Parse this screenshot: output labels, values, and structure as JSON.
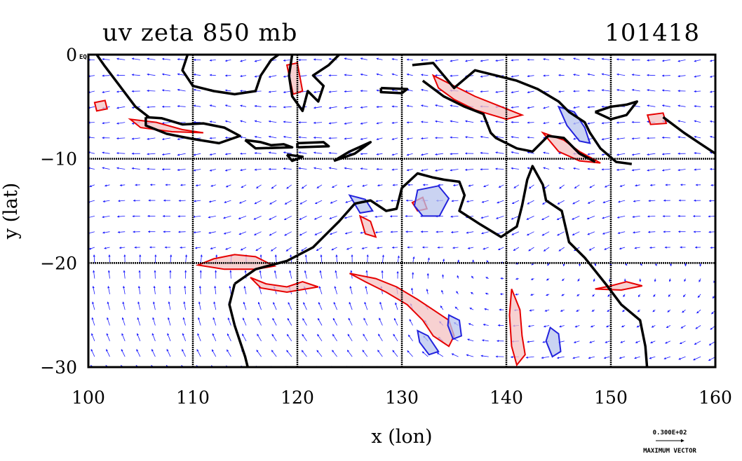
{
  "title": "uv zeta 850 mb",
  "date_stamp": "101418",
  "x_axis": {
    "label": "x (lon)",
    "ticks": [
      {
        "value": 100,
        "label": "100"
      },
      {
        "value": 110,
        "label": "110"
      },
      {
        "value": 120,
        "label": "120"
      },
      {
        "value": 130,
        "label": "130"
      },
      {
        "value": 140,
        "label": "140"
      },
      {
        "value": 150,
        "label": "150"
      },
      {
        "value": 160,
        "label": "160"
      }
    ],
    "range": [
      100,
      160
    ]
  },
  "y_axis": {
    "label": "y (lat)",
    "ticks": [
      {
        "value": 0,
        "label": "0"
      },
      {
        "value": -10,
        "label": "−10"
      },
      {
        "value": -20,
        "label": "−20"
      },
      {
        "value": -30,
        "label": "−30"
      }
    ],
    "range": [
      -30,
      0
    ]
  },
  "corner_label": "EQ",
  "vector_legend": {
    "magnitude_label": "0.300E+02",
    "caption": "MAXIMUM VECTOR"
  },
  "grid": true,
  "colors": {
    "coastline": "#000000",
    "vectors": "#1a1aff",
    "positive_vorticity": "#e60000",
    "positive_fill": "#f4c2c2",
    "negative_vorticity": "#2222dd",
    "negative_fill": "#b8c4ee",
    "grid": "#000000"
  },
  "map_features": {
    "coastlines": [
      {
        "name": "sumatra",
        "points": [
          [
            100.8,
            0
          ],
          [
            101.5,
            -1
          ],
          [
            103,
            -3
          ],
          [
            104.5,
            -5
          ],
          [
            105.8,
            -6
          ]
        ]
      },
      {
        "name": "borneo",
        "points": [
          [
            109.5,
            0
          ],
          [
            109,
            -1.5
          ],
          [
            110,
            -3
          ],
          [
            112,
            -3.5
          ],
          [
            114,
            -3.8
          ],
          [
            116,
            -3.5
          ],
          [
            116.5,
            -2
          ],
          [
            117.5,
            -0.5
          ],
          [
            118.2,
            0
          ]
        ]
      },
      {
        "name": "java",
        "points": [
          [
            105.5,
            -6
          ],
          [
            107,
            -6.1
          ],
          [
            109,
            -6.7
          ],
          [
            111,
            -6.6
          ],
          [
            113,
            -7
          ],
          [
            114.5,
            -7.8
          ],
          [
            112.5,
            -8.5
          ],
          [
            110,
            -8.1
          ],
          [
            107.5,
            -7.6
          ],
          [
            105.5,
            -6.8
          ],
          [
            105.5,
            -6
          ]
        ]
      },
      {
        "name": "bali-lombok",
        "points": [
          [
            115,
            -8.2
          ],
          [
            116.5,
            -8.4
          ],
          [
            117.5,
            -8.7
          ],
          [
            118.7,
            -8.6
          ],
          [
            119.5,
            -8.9
          ],
          [
            116,
            -9
          ],
          [
            115,
            -8.2
          ]
        ]
      },
      {
        "name": "sulawesi",
        "points": [
          [
            119.5,
            0
          ],
          [
            119.2,
            -2
          ],
          [
            119.5,
            -4
          ],
          [
            120.5,
            -5.4
          ],
          [
            121,
            -3.5
          ],
          [
            122,
            -4.5
          ],
          [
            122.5,
            -3
          ],
          [
            121.5,
            -2
          ],
          [
            123,
            -1
          ],
          [
            124,
            0
          ]
        ]
      },
      {
        "name": "timor",
        "points": [
          [
            123.5,
            -10.2
          ],
          [
            125,
            -9.3
          ],
          [
            127,
            -8.4
          ],
          [
            125.5,
            -9.5
          ],
          [
            123.5,
            -10.2
          ]
        ]
      },
      {
        "name": "flores",
        "points": [
          [
            120,
            -8.5
          ],
          [
            122.5,
            -8.4
          ],
          [
            123,
            -8.8
          ],
          [
            120,
            -8.9
          ],
          [
            120,
            -8.5
          ]
        ]
      },
      {
        "name": "sumba",
        "points": [
          [
            119,
            -9.6
          ],
          [
            120.5,
            -9.8
          ],
          [
            119.5,
            -10.2
          ],
          [
            119,
            -9.6
          ]
        ]
      },
      {
        "name": "seram",
        "points": [
          [
            128,
            -3.2
          ],
          [
            130.5,
            -3.3
          ],
          [
            130,
            -3.7
          ],
          [
            128,
            -3.6
          ],
          [
            128,
            -3.2
          ]
        ]
      },
      {
        "name": "new-guinea-north",
        "points": [
          [
            131,
            -1
          ],
          [
            133,
            -0.8
          ],
          [
            135,
            -3.2
          ],
          [
            137,
            -1.5
          ],
          [
            139,
            -2
          ],
          [
            141,
            -2.5
          ],
          [
            143,
            -3.3
          ],
          [
            145,
            -4.5
          ],
          [
            146,
            -5.5
          ],
          [
            147.5,
            -6.5
          ],
          [
            148,
            -7.5
          ],
          [
            149,
            -9
          ],
          [
            150.5,
            -10.3
          ],
          [
            152,
            -10.5
          ]
        ]
      },
      {
        "name": "new-guinea-south",
        "points": [
          [
            132,
            -2.5
          ],
          [
            134,
            -4
          ],
          [
            136,
            -5
          ],
          [
            137.8,
            -5.7
          ],
          [
            138.5,
            -7.5
          ],
          [
            139,
            -8
          ],
          [
            141,
            -9
          ],
          [
            142.5,
            -9.3
          ],
          [
            144,
            -7.8
          ],
          [
            145.5,
            -8
          ],
          [
            147,
            -9.5
          ],
          [
            148.5,
            -10.3
          ]
        ]
      },
      {
        "name": "new-britain",
        "points": [
          [
            148.5,
            -5.5
          ],
          [
            150,
            -5
          ],
          [
            151.5,
            -4.8
          ],
          [
            152.5,
            -4.5
          ],
          [
            151.5,
            -5.8
          ],
          [
            150,
            -6.2
          ],
          [
            148.5,
            -5.5
          ]
        ]
      },
      {
        "name": "solomons",
        "points": [
          [
            155,
            -6
          ],
          [
            157,
            -7.5
          ],
          [
            158.5,
            -8.5
          ],
          [
            160,
            -9.5
          ]
        ]
      },
      {
        "name": "australia-nw",
        "points": [
          [
            114,
            -22
          ],
          [
            113.5,
            -24
          ],
          [
            114,
            -26
          ],
          [
            115,
            -29
          ],
          [
            115.5,
            -31
          ]
        ]
      },
      {
        "name": "australia-north",
        "points": [
          [
            114,
            -22
          ],
          [
            116,
            -20.6
          ],
          [
            119,
            -19.8
          ],
          [
            121.5,
            -18.5
          ],
          [
            123,
            -17
          ],
          [
            124,
            -16
          ],
          [
            125.5,
            -14.3
          ],
          [
            127,
            -14
          ],
          [
            128.5,
            -15
          ],
          [
            129.5,
            -14.8
          ],
          [
            130,
            -12.8
          ],
          [
            131.5,
            -11.4
          ],
          [
            133,
            -11.8
          ],
          [
            134,
            -12
          ],
          [
            135.5,
            -12.2
          ],
          [
            136,
            -13.5
          ],
          [
            135.5,
            -15
          ],
          [
            137.5,
            -16.3
          ],
          [
            139.5,
            -17.5
          ],
          [
            141,
            -16.5
          ],
          [
            141.5,
            -14.5
          ],
          [
            142,
            -12
          ],
          [
            142.5,
            -10.7
          ],
          [
            143.5,
            -12.5
          ],
          [
            143.8,
            -14
          ],
          [
            145.3,
            -15
          ],
          [
            146,
            -18
          ],
          [
            147.5,
            -19.5
          ],
          [
            149.5,
            -22
          ],
          [
            151,
            -24
          ],
          [
            152.8,
            -25.5
          ],
          [
            153.3,
            -28
          ],
          [
            153.5,
            -30.5
          ]
        ]
      }
    ],
    "vorticity_contours": [
      {
        "sign": "positive",
        "points": [
          [
            110.5,
            -20.2
          ],
          [
            112,
            -19.6
          ],
          [
            114,
            -19.2
          ],
          [
            116,
            -19.4
          ],
          [
            117.8,
            -20.3
          ],
          [
            116,
            -20.6
          ],
          [
            113,
            -20.6
          ],
          [
            110.5,
            -20.2
          ]
        ]
      },
      {
        "sign": "positive",
        "points": [
          [
            115.5,
            -21.4
          ],
          [
            117,
            -22
          ],
          [
            119,
            -22.3
          ],
          [
            120.5,
            -21.8
          ],
          [
            122,
            -22.3
          ],
          [
            119,
            -22.8
          ],
          [
            116.5,
            -22.4
          ],
          [
            115.5,
            -21.4
          ]
        ]
      },
      {
        "sign": "positive",
        "points": [
          [
            125,
            -21
          ],
          [
            127.5,
            -21.5
          ],
          [
            129.5,
            -22.3
          ],
          [
            131.5,
            -23.5
          ],
          [
            133,
            -24.5
          ],
          [
            134.5,
            -25.5
          ],
          [
            135,
            -27
          ],
          [
            134.5,
            -28
          ],
          [
            133,
            -27
          ],
          [
            132,
            -25.5
          ],
          [
            130.5,
            -24
          ],
          [
            128.5,
            -22.8
          ],
          [
            126.5,
            -21.8
          ],
          [
            125,
            -21
          ]
        ]
      },
      {
        "sign": "positive",
        "points": [
          [
            140.5,
            -22.5
          ],
          [
            141.3,
            -24.5
          ],
          [
            141.5,
            -27
          ],
          [
            141.8,
            -28.8
          ],
          [
            141,
            -29.8
          ],
          [
            140.5,
            -28
          ],
          [
            140.3,
            -25
          ],
          [
            140.5,
            -22.5
          ]
        ]
      },
      {
        "sign": "positive",
        "points": [
          [
            131,
            -14.2
          ],
          [
            132,
            -13.7
          ],
          [
            132.4,
            -14.8
          ],
          [
            131.5,
            -15
          ],
          [
            131,
            -14.2
          ]
        ]
      },
      {
        "sign": "positive",
        "points": [
          [
            126,
            -15.5
          ],
          [
            127,
            -16
          ],
          [
            127.5,
            -17.5
          ],
          [
            126.5,
            -17.2
          ],
          [
            126,
            -15.5
          ]
        ]
      },
      {
        "sign": "positive",
        "points": [
          [
            133,
            -2
          ],
          [
            135,
            -3
          ],
          [
            137,
            -4
          ],
          [
            139.5,
            -5
          ],
          [
            141.5,
            -5.8
          ],
          [
            140,
            -6.2
          ],
          [
            137,
            -5.3
          ],
          [
            135,
            -4.3
          ],
          [
            133.5,
            -3.2
          ],
          [
            133,
            -2
          ]
        ]
      },
      {
        "sign": "positive",
        "points": [
          [
            143.5,
            -7.5
          ],
          [
            145.5,
            -8.2
          ],
          [
            147,
            -9.3
          ],
          [
            149,
            -10.4
          ],
          [
            147,
            -10.2
          ],
          [
            145,
            -9.3
          ],
          [
            143.5,
            -7.5
          ]
        ]
      },
      {
        "sign": "positive",
        "points": [
          [
            104,
            -6.2
          ],
          [
            106.5,
            -6.5
          ],
          [
            109,
            -7.2
          ],
          [
            111,
            -7.5
          ],
          [
            108,
            -7.4
          ],
          [
            105,
            -7
          ],
          [
            104,
            -6.2
          ]
        ]
      },
      {
        "sign": "positive",
        "points": [
          [
            148.5,
            -22.5
          ],
          [
            150,
            -22.2
          ],
          [
            151.5,
            -21.8
          ],
          [
            153,
            -22.2
          ],
          [
            151,
            -22.6
          ],
          [
            148.5,
            -22.5
          ]
        ]
      },
      {
        "sign": "positive",
        "points": [
          [
            119,
            -1
          ],
          [
            120,
            -0.8
          ],
          [
            120.5,
            -3.5
          ],
          [
            119.6,
            -3.8
          ],
          [
            119,
            -1
          ]
        ]
      },
      {
        "sign": "positive",
        "points": [
          [
            100.6,
            -4.6
          ],
          [
            101.6,
            -4.4
          ],
          [
            101.8,
            -5.2
          ],
          [
            100.8,
            -5.4
          ],
          [
            100.6,
            -4.6
          ]
        ]
      },
      {
        "sign": "positive",
        "points": [
          [
            153.5,
            -5.8
          ],
          [
            155,
            -5.6
          ],
          [
            155.3,
            -6.6
          ],
          [
            153.8,
            -6.7
          ],
          [
            153.5,
            -5.8
          ]
        ]
      },
      {
        "sign": "negative",
        "points": [
          [
            131.5,
            -13
          ],
          [
            133.5,
            -12.6
          ],
          [
            134.5,
            -13.8
          ],
          [
            133.6,
            -15.5
          ],
          [
            132,
            -15.5
          ],
          [
            131.2,
            -14.5
          ],
          [
            131.5,
            -13
          ]
        ]
      },
      {
        "sign": "negative",
        "points": [
          [
            144.2,
            -26.2
          ],
          [
            145,
            -26.8
          ],
          [
            145.2,
            -28.5
          ],
          [
            144.4,
            -29
          ],
          [
            143.8,
            -27.5
          ],
          [
            144.2,
            -26.2
          ]
        ]
      },
      {
        "sign": "negative",
        "points": [
          [
            134.5,
            -25
          ],
          [
            135.5,
            -25.5
          ],
          [
            135.7,
            -27
          ],
          [
            134.9,
            -27.3
          ],
          [
            134.4,
            -26
          ],
          [
            134.5,
            -25
          ]
        ]
      },
      {
        "sign": "negative",
        "points": [
          [
            145,
            -5
          ],
          [
            146.5,
            -5.5
          ],
          [
            147.5,
            -7
          ],
          [
            148,
            -8.5
          ],
          [
            147,
            -8.3
          ],
          [
            145.8,
            -6.8
          ],
          [
            145,
            -5
          ]
        ]
      },
      {
        "sign": "negative",
        "points": [
          [
            131.5,
            -26.5
          ],
          [
            132.5,
            -27
          ],
          [
            133.5,
            -28.5
          ],
          [
            132.6,
            -28.8
          ],
          [
            131.7,
            -27.6
          ],
          [
            131.5,
            -26.5
          ]
        ]
      },
      {
        "sign": "negative",
        "points": [
          [
            125,
            -13.5
          ],
          [
            126.5,
            -13.9
          ],
          [
            127.2,
            -15
          ],
          [
            126,
            -15.2
          ],
          [
            125,
            -13.5
          ]
        ]
      }
    ]
  }
}
